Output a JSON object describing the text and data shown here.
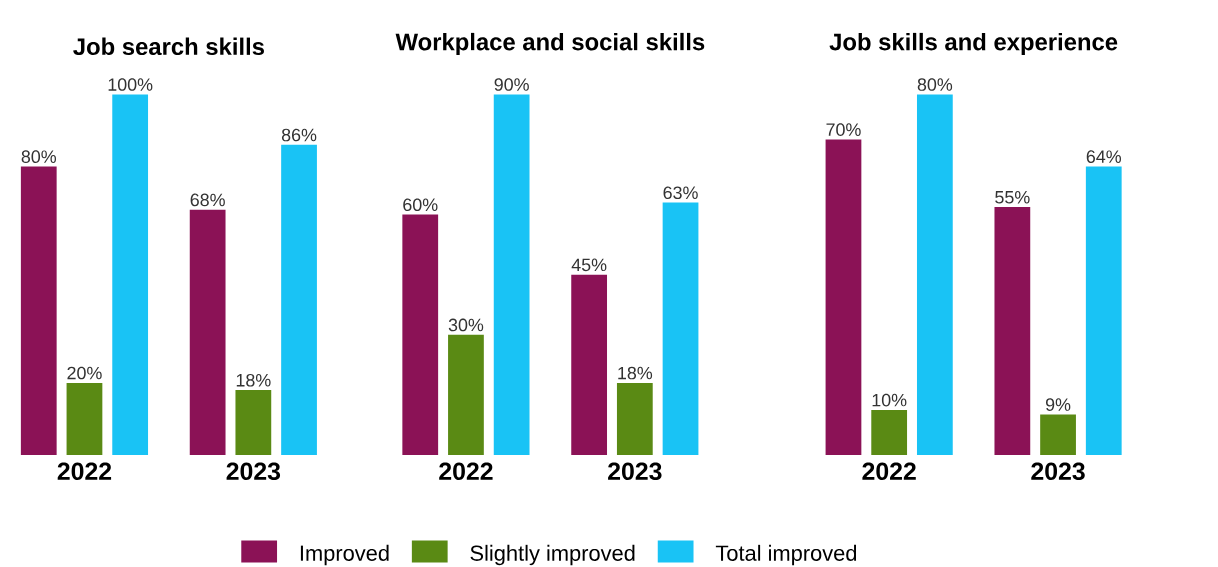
{
  "chart_data": [
    {
      "type": "bar",
      "title": "Job search skills",
      "categories": [
        "2022",
        "2023"
      ],
      "series": [
        {
          "color": "#8b1256",
          "values": [
            80,
            68
          ],
          "value_labels": [
            "80%",
            "68%"
          ]
        },
        {
          "color": "#5a8a14",
          "values": [
            20,
            18
          ],
          "value_labels": [
            "20%",
            "18%"
          ]
        },
        {
          "color": "#19c3f5",
          "values": [
            100,
            86
          ],
          "value_labels": [
            "100%",
            "86%"
          ]
        }
      ]
    },
    {
      "type": "bar",
      "title": "Workplace and social skills",
      "categories": [
        "2022",
        "2023"
      ],
      "legend": "bottom",
      "series": [
        {
          "name": "Improved",
          "color": "#8b1256",
          "values": [
            60,
            45
          ],
          "value_labels": [
            "60%",
            "45%"
          ]
        },
        {
          "name": "Slightly improved",
          "color": "#5a8a14",
          "values": [
            30,
            18
          ],
          "value_labels": [
            "30%",
            "18%"
          ]
        },
        {
          "name": "Total improved",
          "color": "#19c3f5",
          "values": [
            90,
            63
          ],
          "value_labels": [
            "90%",
            "63%"
          ]
        }
      ]
    },
    {
      "type": "bar",
      "title": "Job skills and experience",
      "categories": [
        "2022",
        "2023"
      ],
      "series": [
        {
          "color": "#8b1256",
          "values": [
            70,
            55
          ],
          "value_labels": [
            "70%",
            "55%"
          ]
        },
        {
          "color": "#5a8a14",
          "values": [
            10,
            9
          ],
          "value_labels": [
            "10%",
            "9%"
          ]
        },
        {
          "color": "#19c3f5",
          "values": [
            80,
            64
          ],
          "value_labels": [
            "80%",
            "64%"
          ]
        }
      ]
    }
  ]
}
